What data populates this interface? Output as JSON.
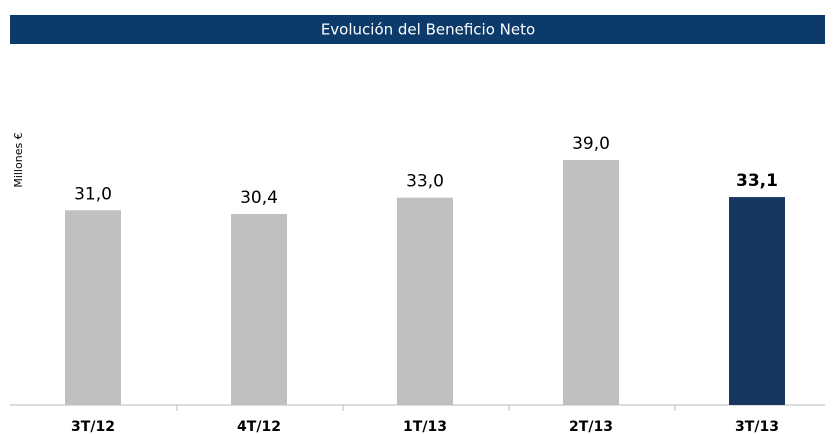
{
  "chart_data": {
    "type": "bar",
    "title": "Evolución del Beneficio Neto",
    "ylabel": "Millones €",
    "categories": [
      "3T/12",
      "4T/12",
      "1T/13",
      "2T/13",
      "3T/13"
    ],
    "values": [
      31.0,
      30.4,
      33.0,
      39.0,
      33.1
    ],
    "value_labels": [
      "31,0",
      "30,4",
      "33,0",
      "39,0",
      "33,1"
    ],
    "colors": [
      "#c0c0c0",
      "#c0c0c0",
      "#c0c0c0",
      "#c0c0c0",
      "#17375e"
    ],
    "bold_labels": [
      false,
      false,
      false,
      false,
      true
    ],
    "title_background": "#0b3a6b"
  }
}
